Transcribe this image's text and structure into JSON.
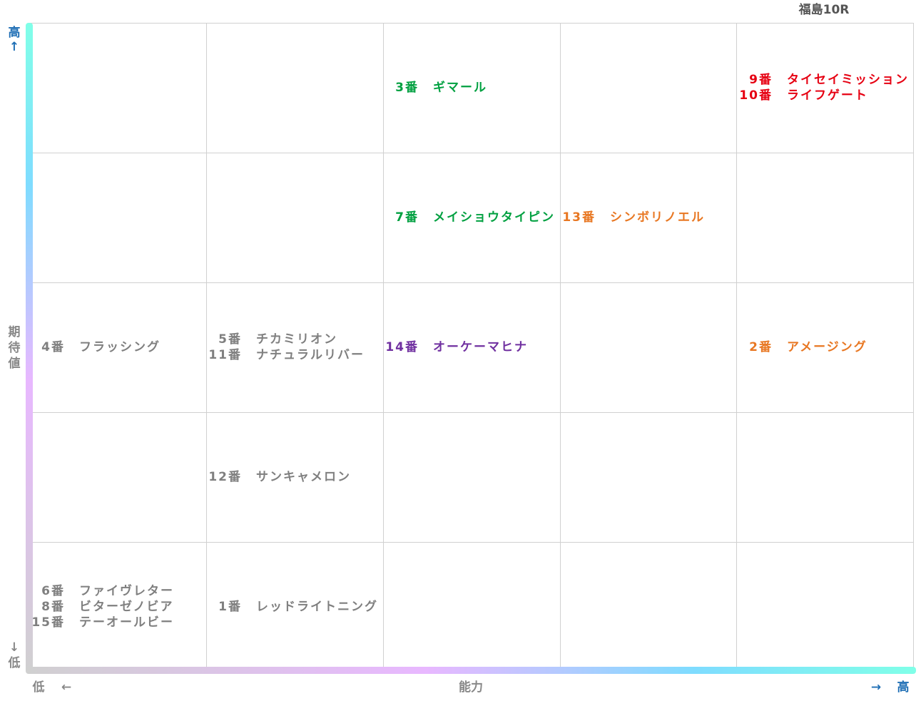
{
  "header": {
    "title": "福島10R"
  },
  "axes": {
    "y_high": "高",
    "y_high_arrow": "↑",
    "y_label": "期待値",
    "y_low_arrow": "↓",
    "y_low": "低",
    "x_low": "低",
    "x_low_arrow": "←",
    "x_label": "能力",
    "x_high_arrow": "→",
    "x_high": "高"
  },
  "grid": {
    "rows": [
      [
        [],
        [],
        [
          {
            "number": "3番",
            "name": "ギマール",
            "color": "#00a040"
          }
        ],
        [],
        [
          {
            "number": "9番",
            "name": "タイセイミッション",
            "color": "#e60012"
          },
          {
            "number": "10番",
            "name": "ライフゲート",
            "color": "#e60012"
          }
        ]
      ],
      [
        [],
        [],
        [
          {
            "number": "7番",
            "name": "メイショウタイピン",
            "color": "#00a040"
          }
        ],
        [
          {
            "number": "13番",
            "name": "シンボリノエル",
            "color": "#e87722"
          }
        ],
        []
      ],
      [
        [
          {
            "number": "4番",
            "name": "フラッシング",
            "color": "#7f7f7f"
          }
        ],
        [
          {
            "number": "5番",
            "name": "チカミリオン",
            "color": "#7f7f7f"
          },
          {
            "number": "11番",
            "name": "ナチュラルリバー",
            "color": "#7f7f7f"
          }
        ],
        [
          {
            "number": "14番",
            "name": "オーケーマヒナ",
            "color": "#7030a0"
          }
        ],
        [],
        [
          {
            "number": "2番",
            "name": "アメージング",
            "color": "#e87722"
          }
        ]
      ],
      [
        [],
        [
          {
            "number": "12番",
            "name": "サンキャメロン",
            "color": "#7f7f7f"
          }
        ],
        [],
        [],
        []
      ],
      [
        [
          {
            "number": "6番",
            "name": "ファイヴレター",
            "color": "#7f7f7f"
          },
          {
            "number": "8番",
            "name": "ビターゼノビア",
            "color": "#7f7f7f"
          },
          {
            "number": "15番",
            "name": "テーオールビー",
            "color": "#7f7f7f"
          }
        ],
        [
          {
            "number": "1番",
            "name": "レッドライトニング",
            "color": "#7f7f7f"
          }
        ],
        [],
        [],
        []
      ]
    ]
  }
}
